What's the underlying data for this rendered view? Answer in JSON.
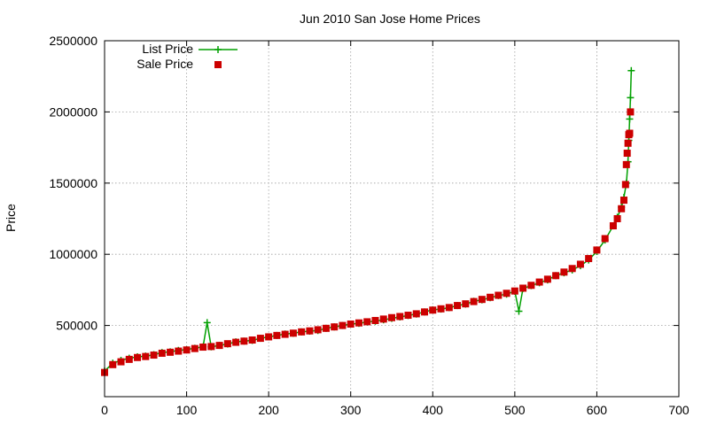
{
  "chart_data": {
    "type": "scatter",
    "title": "Jun 2010 San Jose Home Prices",
    "xlabel": "",
    "ylabel": "Price",
    "xlim": [
      0,
      700
    ],
    "ylim": [
      0,
      2500000
    ],
    "x_ticks": [
      0,
      100,
      200,
      300,
      400,
      500,
      600,
      700
    ],
    "y_ticks": [
      500000,
      1000000,
      1500000,
      2000000,
      2500000
    ],
    "grid": true,
    "legend_position": "top-left",
    "series": [
      {
        "name": "List Price",
        "style": "linespoints",
        "marker": "plus",
        "color": "#00a000",
        "points": [
          [
            0,
            180000
          ],
          [
            10,
            235000
          ],
          [
            20,
            255000
          ],
          [
            30,
            270000
          ],
          [
            40,
            280000
          ],
          [
            50,
            285000
          ],
          [
            60,
            295000
          ],
          [
            70,
            310000
          ],
          [
            80,
            315000
          ],
          [
            90,
            325000
          ],
          [
            100,
            330000
          ],
          [
            110,
            340000
          ],
          [
            120,
            350000
          ],
          [
            125,
            520000
          ],
          [
            130,
            350000
          ],
          [
            140,
            360000
          ],
          [
            150,
            370000
          ],
          [
            160,
            385000
          ],
          [
            170,
            390000
          ],
          [
            180,
            395000
          ],
          [
            190,
            410000
          ],
          [
            200,
            420000
          ],
          [
            210,
            430000
          ],
          [
            220,
            440000
          ],
          [
            230,
            445000
          ],
          [
            240,
            455000
          ],
          [
            250,
            460000
          ],
          [
            260,
            465000
          ],
          [
            270,
            480000
          ],
          [
            280,
            490000
          ],
          [
            290,
            500000
          ],
          [
            300,
            510000
          ],
          [
            310,
            515000
          ],
          [
            320,
            525000
          ],
          [
            330,
            530000
          ],
          [
            340,
            540000
          ],
          [
            350,
            550000
          ],
          [
            360,
            560000
          ],
          [
            370,
            570000
          ],
          [
            380,
            580000
          ],
          [
            390,
            595000
          ],
          [
            400,
            610000
          ],
          [
            410,
            615000
          ],
          [
            420,
            625000
          ],
          [
            430,
            640000
          ],
          [
            440,
            650000
          ],
          [
            450,
            670000
          ],
          [
            460,
            680000
          ],
          [
            470,
            695000
          ],
          [
            480,
            710000
          ],
          [
            490,
            720000
          ],
          [
            500,
            740000
          ],
          [
            505,
            600000
          ],
          [
            510,
            760000
          ],
          [
            520,
            780000
          ],
          [
            530,
            800000
          ],
          [
            540,
            820000
          ],
          [
            550,
            850000
          ],
          [
            560,
            870000
          ],
          [
            570,
            890000
          ],
          [
            580,
            920000
          ],
          [
            590,
            960000
          ],
          [
            600,
            1020000
          ],
          [
            610,
            1100000
          ],
          [
            620,
            1200000
          ],
          [
            625,
            1260000
          ],
          [
            630,
            1330000
          ],
          [
            633,
            1400000
          ],
          [
            636,
            1500000
          ],
          [
            638,
            1650000
          ],
          [
            639,
            1800000
          ],
          [
            640,
            1950000
          ],
          [
            641,
            2100000
          ],
          [
            642,
            2290000
          ]
        ]
      },
      {
        "name": "Sale Price",
        "style": "points",
        "marker": "square",
        "color": "#cc0000",
        "points": [
          [
            0,
            170000
          ],
          [
            10,
            225000
          ],
          [
            20,
            245000
          ],
          [
            30,
            262000
          ],
          [
            40,
            275000
          ],
          [
            50,
            282000
          ],
          [
            60,
            292000
          ],
          [
            70,
            305000
          ],
          [
            80,
            312000
          ],
          [
            90,
            320000
          ],
          [
            100,
            328000
          ],
          [
            110,
            338000
          ],
          [
            120,
            348000
          ],
          [
            130,
            352000
          ],
          [
            140,
            360000
          ],
          [
            150,
            372000
          ],
          [
            160,
            382000
          ],
          [
            170,
            390000
          ],
          [
            180,
            398000
          ],
          [
            190,
            410000
          ],
          [
            200,
            420000
          ],
          [
            210,
            430000
          ],
          [
            220,
            438000
          ],
          [
            230,
            446000
          ],
          [
            240,
            455000
          ],
          [
            250,
            462000
          ],
          [
            260,
            470000
          ],
          [
            270,
            480000
          ],
          [
            280,
            490000
          ],
          [
            290,
            500000
          ],
          [
            300,
            510000
          ],
          [
            310,
            518000
          ],
          [
            320,
            526000
          ],
          [
            330,
            535000
          ],
          [
            340,
            545000
          ],
          [
            350,
            555000
          ],
          [
            360,
            563000
          ],
          [
            370,
            572000
          ],
          [
            380,
            582000
          ],
          [
            390,
            595000
          ],
          [
            400,
            608000
          ],
          [
            410,
            617000
          ],
          [
            420,
            626000
          ],
          [
            430,
            640000
          ],
          [
            440,
            652000
          ],
          [
            450,
            668000
          ],
          [
            460,
            683000
          ],
          [
            470,
            698000
          ],
          [
            480,
            712000
          ],
          [
            490,
            726000
          ],
          [
            500,
            742000
          ],
          [
            510,
            762000
          ],
          [
            520,
            782000
          ],
          [
            530,
            805000
          ],
          [
            540,
            825000
          ],
          [
            550,
            850000
          ],
          [
            560,
            875000
          ],
          [
            570,
            900000
          ],
          [
            580,
            930000
          ],
          [
            590,
            970000
          ],
          [
            600,
            1030000
          ],
          [
            610,
            1110000
          ],
          [
            620,
            1200000
          ],
          [
            625,
            1250000
          ],
          [
            630,
            1320000
          ],
          [
            633,
            1380000
          ],
          [
            635,
            1490000
          ],
          [
            636,
            1630000
          ],
          [
            637,
            1710000
          ],
          [
            638,
            1780000
          ],
          [
            639,
            1840000
          ],
          [
            640,
            1850000
          ],
          [
            641,
            2000000
          ]
        ]
      }
    ]
  }
}
